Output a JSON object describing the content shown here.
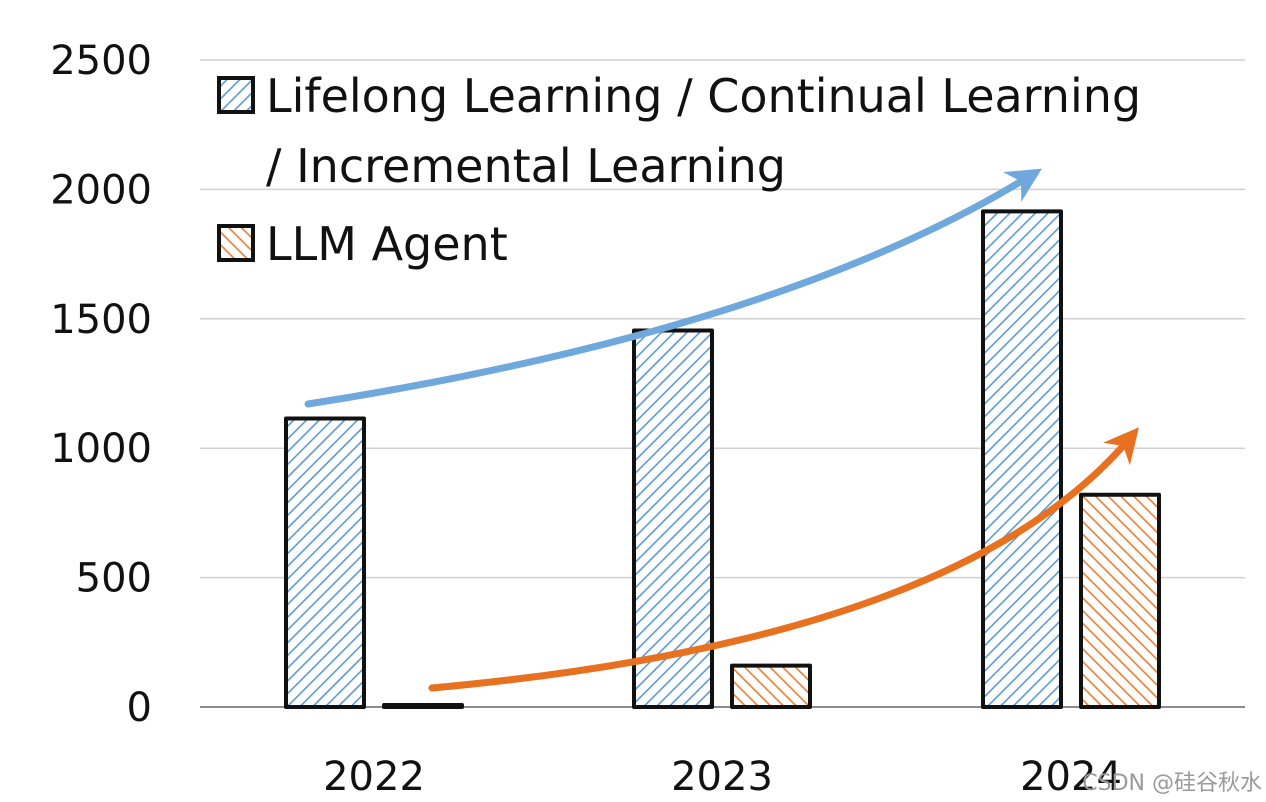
{
  "chart_data": {
    "type": "bar",
    "categories": [
      "2022",
      "2023",
      "2024"
    ],
    "series": [
      {
        "name": "Lifelong Learning / Continual Learning / Incremental Learning",
        "legend_lines": [
          "Lifelong Learning / Continual Learning",
          "/ Incremental Learning"
        ],
        "values": [
          1115,
          1455,
          1915
        ],
        "color": "#5b9bd5",
        "pattern": "diagonal-hatch"
      },
      {
        "name": "LLM Agent",
        "legend_lines": [
          "LLM Agent"
        ],
        "values": [
          5,
          160,
          820
        ],
        "color": "#ed7d31",
        "pattern": "diagonal-hatch-reverse"
      }
    ],
    "y_ticks": [
      0,
      500,
      1000,
      1500,
      2000,
      2500
    ],
    "ylim": [
      0,
      2500
    ],
    "grid": true,
    "legend_position": "top-left",
    "trend_arrows": [
      {
        "series": "Lifelong Learning / Continual Learning / Incremental Learning",
        "color": "#6fa8dc"
      },
      {
        "series": "LLM Agent",
        "color": "#e8711f"
      }
    ]
  },
  "watermark": "CSDN @硅谷秋水"
}
